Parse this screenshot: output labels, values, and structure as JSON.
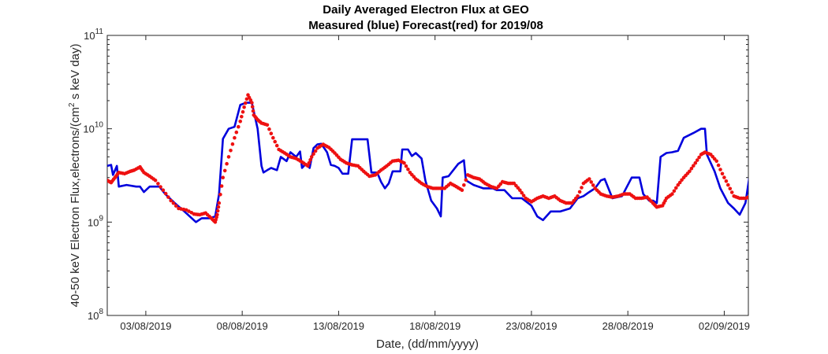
{
  "chart_data": {
    "type": "line",
    "title": [
      "Daily Averaged Electron Flux at GEO",
      "Measured (blue) Forecast(red) for 2019/08"
    ],
    "xlabel": "Date, (dd/mm/yyyy)",
    "ylabel": "40-50 keV Electron Flux,electrons/(cm",
    "ylabel_sup": "2",
    "ylabel_tail": " s keV day)",
    "y_scale": "log",
    "ylim": [
      100000000,
      100000000000
    ],
    "y_ticks": [
      {
        "value": 100000000,
        "base": "10",
        "exp": "8"
      },
      {
        "value": 1000000000,
        "base": "10",
        "exp": "9"
      },
      {
        "value": 10000000000,
        "base": "10",
        "exp": "10"
      },
      {
        "value": 100000000000,
        "base": "10",
        "exp": "11"
      }
    ],
    "x_unit": "day of August 2019 (1 = 01/08/2019)",
    "xlim": [
      1.0,
      34.25
    ],
    "x_ticks": [
      {
        "value": 3,
        "label": "03/08/2019"
      },
      {
        "value": 8,
        "label": "08/08/2019"
      },
      {
        "value": 13,
        "label": "13/08/2019"
      },
      {
        "value": 18,
        "label": "18/08/2019"
      },
      {
        "value": 23,
        "label": "23/08/2019"
      },
      {
        "value": 28,
        "label": "28/08/2019"
      },
      {
        "value": 33,
        "label": "02/09/2019"
      }
    ],
    "grid": false,
    "series": [
      {
        "name": "Measured",
        "color": "#0000dd",
        "style": "line",
        "points": [
          [
            1.0,
            4000000000.0
          ],
          [
            1.2,
            4100000000.0
          ],
          [
            1.3,
            3200000000.0
          ],
          [
            1.5,
            4000000000.0
          ],
          [
            1.6,
            2400000000.0
          ],
          [
            2.0,
            2500000000.0
          ],
          [
            2.5,
            2400000000.0
          ],
          [
            2.7,
            2400000000.0
          ],
          [
            2.9,
            2100000000.0
          ],
          [
            3.2,
            2400000000.0
          ],
          [
            3.7,
            2400000000.0
          ],
          [
            4.0,
            2000000000.0
          ],
          [
            4.5,
            1600000000.0
          ],
          [
            5.0,
            1300000000.0
          ],
          [
            5.6,
            1000000000.0
          ],
          [
            5.9,
            1100000000.0
          ],
          [
            6.3,
            1100000000.0
          ],
          [
            6.6,
            1150000000.0
          ],
          [
            6.8,
            2000000000.0
          ],
          [
            7.0,
            7800000000.0
          ],
          [
            7.3,
            10000000000.0
          ],
          [
            7.6,
            10500000000.0
          ],
          [
            7.9,
            18000000000.0
          ],
          [
            8.2,
            19000000000.0
          ],
          [
            8.5,
            19000000000.0
          ],
          [
            8.8,
            10000000000.0
          ],
          [
            9.0,
            4000000000.0
          ],
          [
            9.1,
            3400000000.0
          ],
          [
            9.3,
            3600000000.0
          ],
          [
            9.5,
            3800000000.0
          ],
          [
            9.8,
            3600000000.0
          ],
          [
            10.0,
            5000000000.0
          ],
          [
            10.3,
            4500000000.0
          ],
          [
            10.5,
            5600000000.0
          ],
          [
            10.8,
            5000000000.0
          ],
          [
            11.0,
            5700000000.0
          ],
          [
            11.1,
            3800000000.0
          ],
          [
            11.3,
            4200000000.0
          ],
          [
            11.5,
            3800000000.0
          ],
          [
            11.7,
            6200000000.0
          ],
          [
            11.9,
            6800000000.0
          ],
          [
            12.1,
            6900000000.0
          ],
          [
            12.4,
            5600000000.0
          ],
          [
            12.6,
            4100000000.0
          ],
          [
            12.8,
            4000000000.0
          ],
          [
            13.0,
            3800000000.0
          ],
          [
            13.2,
            3300000000.0
          ],
          [
            13.5,
            3300000000.0
          ],
          [
            13.7,
            7700000000.0
          ],
          [
            14.1,
            7700000000.0
          ],
          [
            14.5,
            7700000000.0
          ],
          [
            14.7,
            3400000000.0
          ],
          [
            15.0,
            3400000000.0
          ],
          [
            15.2,
            2700000000.0
          ],
          [
            15.4,
            2300000000.0
          ],
          [
            15.6,
            2600000000.0
          ],
          [
            15.8,
            3500000000.0
          ],
          [
            16.2,
            3500000000.0
          ],
          [
            16.3,
            6000000000.0
          ],
          [
            16.6,
            6000000000.0
          ],
          [
            16.8,
            5100000000.0
          ],
          [
            17.0,
            5500000000.0
          ],
          [
            17.3,
            4800000000.0
          ],
          [
            17.5,
            2800000000.0
          ],
          [
            17.8,
            1700000000.0
          ],
          [
            18.1,
            1400000000.0
          ],
          [
            18.3,
            1150000000.0
          ],
          [
            18.4,
            3000000000.0
          ],
          [
            18.7,
            3100000000.0
          ],
          [
            19.2,
            4200000000.0
          ],
          [
            19.5,
            4600000000.0
          ],
          [
            19.6,
            2800000000.0
          ],
          [
            20.0,
            2500000000.0
          ],
          [
            20.5,
            2300000000.0
          ],
          [
            21.0,
            2300000000.0
          ],
          [
            21.2,
            2200000000.0
          ],
          [
            21.6,
            2200000000.0
          ],
          [
            22.0,
            1800000000.0
          ],
          [
            22.5,
            1800000000.0
          ],
          [
            23.0,
            1500000000.0
          ],
          [
            23.3,
            1150000000.0
          ],
          [
            23.6,
            1050000000.0
          ],
          [
            24.0,
            1300000000.0
          ],
          [
            24.5,
            1300000000.0
          ],
          [
            25.0,
            1400000000.0
          ],
          [
            25.4,
            1800000000.0
          ],
          [
            25.7,
            1900000000.0
          ],
          [
            26.0,
            2100000000.0
          ],
          [
            26.3,
            2300000000.0
          ],
          [
            26.6,
            2800000000.0
          ],
          [
            26.8,
            2900000000.0
          ],
          [
            27.2,
            1800000000.0
          ],
          [
            27.7,
            1900000000.0
          ],
          [
            28.2,
            3000000000.0
          ],
          [
            28.6,
            3000000000.0
          ],
          [
            28.8,
            2000000000.0
          ],
          [
            29.1,
            1700000000.0
          ],
          [
            29.3,
            1700000000.0
          ],
          [
            29.5,
            1600000000.0
          ],
          [
            29.7,
            5000000000.0
          ],
          [
            30.0,
            5500000000.0
          ],
          [
            30.3,
            5600000000.0
          ],
          [
            30.6,
            5800000000.0
          ],
          [
            30.9,
            8000000000.0
          ],
          [
            31.4,
            9000000000.0
          ],
          [
            31.8,
            10000000000.0
          ],
          [
            32.0,
            10000000000.0
          ],
          [
            32.1,
            5300000000.0
          ],
          [
            32.5,
            3500000000.0
          ],
          [
            32.8,
            2300000000.0
          ],
          [
            33.2,
            1600000000.0
          ],
          [
            33.5,
            1400000000.0
          ],
          [
            33.8,
            1200000000.0
          ],
          [
            34.1,
            1600000000.0
          ],
          [
            34.3,
            3000000000.0
          ],
          [
            34.5,
            3500000000.0
          ],
          [
            34.8,
            5500000000.0
          ],
          [
            35.0,
            5500000000.0
          ],
          [
            35.2,
            7000000000.0
          ],
          [
            35.4,
            12000000000.0
          ],
          [
            35.6,
            15000000000.0
          ],
          [
            35.8,
            20000000000.0
          ],
          [
            36.0,
            20000000000.0
          ]
        ]
      },
      {
        "name": "Forecast",
        "color": "#ee1111",
        "style": "dots",
        "points": [
          [
            1.0,
            2800000000.0
          ],
          [
            1.2,
            2650000000.0
          ],
          [
            1.4,
            3000000000.0
          ],
          [
            1.6,
            3400000000.0
          ],
          [
            1.9,
            3300000000.0
          ],
          [
            2.2,
            3500000000.0
          ],
          [
            2.4,
            3600000000.0
          ],
          [
            2.7,
            3900000000.0
          ],
          [
            2.9,
            3400000000.0
          ],
          [
            3.2,
            3100000000.0
          ],
          [
            3.5,
            2800000000.0
          ],
          [
            3.9,
            2200000000.0
          ],
          [
            4.3,
            1700000000.0
          ],
          [
            4.7,
            1400000000.0
          ],
          [
            5.1,
            1350000000.0
          ],
          [
            5.5,
            1220000000.0
          ],
          [
            5.8,
            1200000000.0
          ],
          [
            6.1,
            1250000000.0
          ],
          [
            6.4,
            1100000000.0
          ],
          [
            6.6,
            1000000000.0
          ],
          [
            6.7,
            1200000000.0
          ],
          [
            6.8,
            1600000000.0
          ],
          [
            7.0,
            3000000000.0
          ],
          [
            7.3,
            5000000000.0
          ],
          [
            7.6,
            8000000000.0
          ],
          [
            7.9,
            12000000000.0
          ],
          [
            8.1,
            17000000000.0
          ],
          [
            8.3,
            23000000000.0
          ],
          [
            8.5,
            19000000000.0
          ],
          [
            8.6,
            14000000000.0
          ],
          [
            8.8,
            12500000000.0
          ],
          [
            9.0,
            11500000000.0
          ],
          [
            9.3,
            11000000000.0
          ],
          [
            9.6,
            8000000000.0
          ],
          [
            9.9,
            6000000000.0
          ],
          [
            10.2,
            5500000000.0
          ],
          [
            10.5,
            5000000000.0
          ],
          [
            10.8,
            4800000000.0
          ],
          [
            11.1,
            4400000000.0
          ],
          [
            11.4,
            4000000000.0
          ],
          [
            11.6,
            5000000000.0
          ],
          [
            11.9,
            6200000000.0
          ],
          [
            12.2,
            6800000000.0
          ],
          [
            12.5,
            6300000000.0
          ],
          [
            12.8,
            5500000000.0
          ],
          [
            13.1,
            4700000000.0
          ],
          [
            13.4,
            4300000000.0
          ],
          [
            13.7,
            4100000000.0
          ],
          [
            14.0,
            4000000000.0
          ],
          [
            14.3,
            3500000000.0
          ],
          [
            14.6,
            3100000000.0
          ],
          [
            14.9,
            3200000000.0
          ],
          [
            15.2,
            3600000000.0
          ],
          [
            15.5,
            4000000000.0
          ],
          [
            15.8,
            4500000000.0
          ],
          [
            16.1,
            4600000000.0
          ],
          [
            16.4,
            4300000000.0
          ],
          [
            16.7,
            3400000000.0
          ],
          [
            17.0,
            2900000000.0
          ],
          [
            17.3,
            2600000000.0
          ],
          [
            17.6,
            2400000000.0
          ],
          [
            17.9,
            2300000000.0
          ],
          [
            18.2,
            2300000000.0
          ],
          [
            18.5,
            2300000000.0
          ],
          [
            18.8,
            2600000000.0
          ],
          [
            19.1,
            2400000000.0
          ],
          [
            19.4,
            2200000000.0
          ],
          [
            19.7,
            3200000000.0
          ],
          [
            20.0,
            3000000000.0
          ],
          [
            20.3,
            2900000000.0
          ],
          [
            20.6,
            2600000000.0
          ],
          [
            20.9,
            2400000000.0
          ],
          [
            21.2,
            2300000000.0
          ],
          [
            21.5,
            2700000000.0
          ],
          [
            21.8,
            2600000000.0
          ],
          [
            22.1,
            2600000000.0
          ],
          [
            22.4,
            2200000000.0
          ],
          [
            22.7,
            1800000000.0
          ],
          [
            23.0,
            1650000000.0
          ],
          [
            23.3,
            1800000000.0
          ],
          [
            23.6,
            1900000000.0
          ],
          [
            23.9,
            1800000000.0
          ],
          [
            24.2,
            1900000000.0
          ],
          [
            24.5,
            1700000000.0
          ],
          [
            24.8,
            1600000000.0
          ],
          [
            25.1,
            1600000000.0
          ],
          [
            25.4,
            1900000000.0
          ],
          [
            25.7,
            2600000000.0
          ],
          [
            26.0,
            2900000000.0
          ],
          [
            26.3,
            2300000000.0
          ],
          [
            26.6,
            2000000000.0
          ],
          [
            26.9,
            1900000000.0
          ],
          [
            27.2,
            1850000000.0
          ],
          [
            27.5,
            1900000000.0
          ],
          [
            27.8,
            2000000000.0
          ],
          [
            28.1,
            2000000000.0
          ],
          [
            28.4,
            1800000000.0
          ],
          [
            28.7,
            1800000000.0
          ],
          [
            29.0,
            1850000000.0
          ],
          [
            29.3,
            1600000000.0
          ],
          [
            29.5,
            1450000000.0
          ],
          [
            29.8,
            1500000000.0
          ],
          [
            30.0,
            1800000000.0
          ],
          [
            30.3,
            2000000000.0
          ],
          [
            30.6,
            2500000000.0
          ],
          [
            30.9,
            3000000000.0
          ],
          [
            31.2,
            3500000000.0
          ],
          [
            31.5,
            4300000000.0
          ],
          [
            31.8,
            5300000000.0
          ],
          [
            32.0,
            5600000000.0
          ],
          [
            32.3,
            5300000000.0
          ],
          [
            32.6,
            4500000000.0
          ],
          [
            32.9,
            3300000000.0
          ],
          [
            33.2,
            2500000000.0
          ],
          [
            33.5,
            1900000000.0
          ],
          [
            33.8,
            1800000000.0
          ],
          [
            34.1,
            1800000000.0
          ],
          [
            34.4,
            1900000000.0
          ],
          [
            34.7,
            1850000000.0
          ],
          [
            35.0,
            1800000000.0
          ],
          [
            35.2,
            2100000000.0
          ],
          [
            35.4,
            2700000000.0
          ],
          [
            35.6,
            3500000000.0
          ],
          [
            35.8,
            5500000000.0
          ],
          [
            36.0,
            8500000000.0
          ],
          [
            36.2,
            11000000000.0
          ],
          [
            36.3,
            13000000000.0
          ],
          [
            36.4,
            15000000000.0
          ]
        ]
      }
    ]
  }
}
